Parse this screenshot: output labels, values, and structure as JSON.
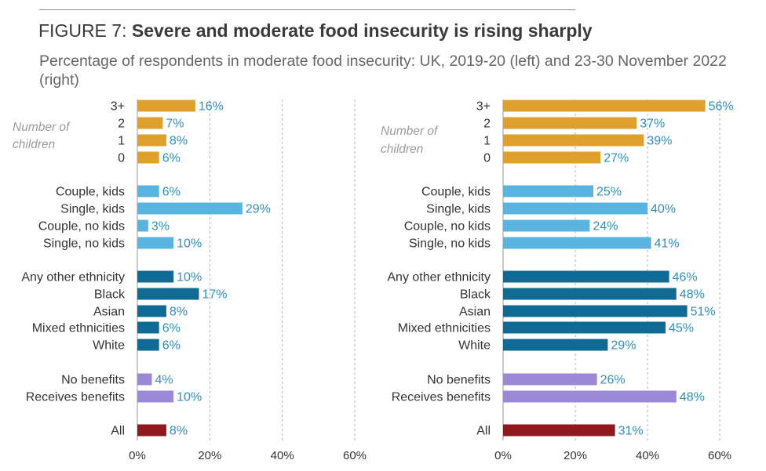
{
  "figure": {
    "label": "FIGURE 7: ",
    "title": "Severe and moderate food insecurity is rising sharply",
    "subtitle": "Percentage of respondents in moderate food insecurity: UK, 2019-20 (left) and 23-30 November 2022 (right)"
  },
  "colors": {
    "children": "#e0a02e",
    "household": "#59b4e0",
    "ethnicity": "#0f6b94",
    "benefits": "#9b89d6",
    "all": "#8e1a1e",
    "label": "#2f8fbf"
  },
  "chart_data": [
    {
      "type": "bar",
      "orientation": "horizontal",
      "title": "2019-20",
      "group_annotation": "Number of children",
      "categories": [
        "3+",
        "2",
        "1",
        "0",
        "Couple, kids",
        "Single, kids",
        "Couple, no kids",
        "Single, no kids",
        "Any other ethnicity",
        "Black",
        "Asian",
        "Mixed ethnicities",
        "White",
        "No benefits",
        "Receives benefits",
        "All"
      ],
      "groups": [
        "children",
        "children",
        "children",
        "children",
        "household",
        "household",
        "household",
        "household",
        "ethnicity",
        "ethnicity",
        "ethnicity",
        "ethnicity",
        "ethnicity",
        "benefits",
        "benefits",
        "all"
      ],
      "values": [
        16,
        7,
        8,
        6,
        6,
        29,
        3,
        10,
        10,
        17,
        8,
        6,
        6,
        4,
        10,
        8
      ],
      "value_labels": [
        "16%",
        "7%",
        "8%",
        "6%",
        "6%",
        "29%",
        "3%",
        "10%",
        "10%",
        "17%",
        "8%",
        "6%",
        "6%",
        "4%",
        "10%",
        "8%"
      ],
      "xlim": [
        0,
        60
      ],
      "xticks": [
        "0%",
        "20%",
        "40%",
        "60%"
      ]
    },
    {
      "type": "bar",
      "orientation": "horizontal",
      "title": "23-30 November 2022",
      "group_annotation": "Number of children",
      "categories": [
        "3+",
        "2",
        "1",
        "0",
        "Couple, kids",
        "Single, kids",
        "Couple, no kids",
        "Single, no kids",
        "Any other ethnicity",
        "Black",
        "Asian",
        "Mixed ethnicities",
        "White",
        "No benefits",
        "Receives benefits",
        "All"
      ],
      "groups": [
        "children",
        "children",
        "children",
        "children",
        "household",
        "household",
        "household",
        "household",
        "ethnicity",
        "ethnicity",
        "ethnicity",
        "ethnicity",
        "ethnicity",
        "benefits",
        "benefits",
        "all"
      ],
      "values": [
        56,
        37,
        39,
        27,
        25,
        40,
        24,
        41,
        46,
        48,
        51,
        45,
        29,
        26,
        48,
        31
      ],
      "value_labels": [
        "56%",
        "37%",
        "39%",
        "27%",
        "25%",
        "40%",
        "24%",
        "41%",
        "46%",
        "48%",
        "51%",
        "45%",
        "29%",
        "26%",
        "48%",
        "31%"
      ],
      "xlim": [
        0,
        60
      ],
      "xticks": [
        "0%",
        "20%",
        "40%",
        "60%"
      ]
    }
  ]
}
